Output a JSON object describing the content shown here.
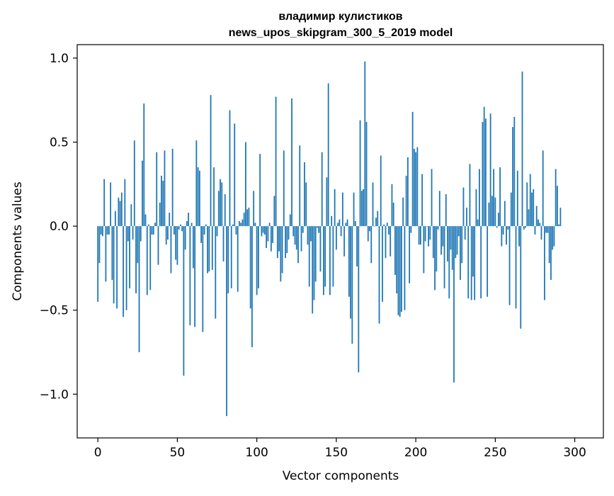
{
  "chart_data": {
    "type": "bar",
    "title": "владимир кулистиков",
    "subtitle": "news_upos_skipgram_300_5_2019 model",
    "xlabel": "Vector components",
    "ylabel": "Components values",
    "xlim": [
      -13,
      318
    ],
    "ylim": [
      -1.26,
      1.08
    ],
    "xticks": [
      0,
      50,
      100,
      150,
      200,
      250,
      300
    ],
    "xtick_labels": [
      "0",
      "50",
      "100",
      "150",
      "200",
      "250",
      "300"
    ],
    "yticks": [
      -1.0,
      -0.5,
      0.0,
      0.5,
      1.0
    ],
    "ytick_labels": [
      "−1.0",
      "−0.5",
      "0.0",
      "0.5",
      "1.0"
    ],
    "bar_color": "#1f77b4",
    "grid": false,
    "legend": "none",
    "values": [
      -0.45,
      -0.22,
      -0.05,
      -0.06,
      0.28,
      -0.33,
      -0.05,
      -0.05,
      0.26,
      -0.32,
      -0.46,
      0.09,
      -0.49,
      0.17,
      0.15,
      0.2,
      -0.54,
      0.28,
      -0.5,
      -0.09,
      -0.37,
      0.13,
      -0.08,
      0.51,
      -0.4,
      -0.22,
      -0.75,
      -0.09,
      0.39,
      0.73,
      0.07,
      -0.41,
      0.01,
      -0.38,
      -0.05,
      -0.05,
      0.02,
      0.44,
      -0.23,
      0.14,
      0.3,
      0.27,
      0.45,
      -0.11,
      -0.08,
      0.08,
      -0.28,
      0.46,
      -0.05,
      -0.2,
      -0.23,
      -0.02,
      0.01,
      -0.03,
      -0.89,
      -0.14,
      0.03,
      0.08,
      -0.59,
      0.02,
      -0.25,
      -0.6,
      0.51,
      0.35,
      0.33,
      -0.1,
      -0.63,
      -0.05,
      0.01,
      -0.28,
      -0.27,
      0.78,
      -0.26,
      0.35,
      -0.55,
      -0.06,
      0.21,
      0.28,
      0.26,
      -0.21,
      0.19,
      -1.13,
      -0.4,
      0.69,
      -0.37,
      0.01,
      0.61,
      -0.05,
      -0.39,
      0.03,
      0.02,
      0.04,
      0.08,
      0.5,
      0.1,
      0.11,
      -0.49,
      -0.72,
      0.21,
      0.02,
      -0.41,
      -0.37,
      0.43,
      -0.06,
      -0.04,
      -0.05,
      -0.13,
      -0.09,
      0.02,
      -0.15,
      -0.1,
      0.18,
      0.77,
      -0.19,
      -0.15,
      -0.33,
      -0.28,
      0.45,
      -0.19,
      -0.16,
      -0.08,
      0.07,
      0.76,
      -0.06,
      -0.11,
      -0.14,
      -0.22,
      0.48,
      -0.15,
      -0.04,
      0.38,
      0.26,
      -0.11,
      -0.36,
      -0.09,
      -0.52,
      -0.44,
      -0.33,
      -0.01,
      -0.04,
      -0.27,
      0.44,
      -0.41,
      -0.36,
      0.29,
      0.85,
      -0.41,
      0.06,
      -0.36,
      0.22,
      -0.14,
      0.02,
      0.04,
      -0.06,
      0.2,
      -0.18,
      0.02,
      0.04,
      -0.42,
      -0.55,
      -0.7,
      0.2,
      0.03,
      -0.24,
      -0.87,
      0.63,
      0.21,
      0.22,
      0.98,
      0.62,
      -0.09,
      -0.03,
      -0.22,
      0.26,
      0.0,
      0.05,
      0.09,
      -0.58,
      0.42,
      -0.45,
      0.01,
      -0.19,
      0.02,
      -0.05,
      -0.18,
      0.25,
      0.14,
      -0.29,
      -0.4,
      -0.53,
      -0.54,
      -0.51,
      0.17,
      -0.5,
      0.3,
      0.41,
      -0.34,
      -0.04,
      0.68,
      0.46,
      0.44,
      0.47,
      -0.11,
      -0.11,
      0.31,
      -0.28,
      -0.09,
      0.0,
      -0.12,
      -0.08,
      0.34,
      -0.19,
      -0.38,
      -0.27,
      -0.02,
      0.21,
      -0.17,
      -0.12,
      -0.37,
      0.19,
      -0.21,
      -0.43,
      -0.14,
      -0.26,
      -0.93,
      -0.19,
      -0.17,
      -0.06,
      -0.32,
      -0.22,
      0.23,
      -0.08,
      0.11,
      -0.43,
      0.37,
      -0.44,
      -0.3,
      -0.44,
      0.22,
      0.04,
      0.34,
      -0.43,
      0.62,
      0.71,
      0.64,
      -0.42,
      0.14,
      0.67,
      0.18,
      0.34,
      0.17,
      -0.01,
      0.08,
      0.35,
      -0.12,
      -0.05,
      0.15,
      -0.11,
      -0.02,
      -0.47,
      0.2,
      0.59,
      0.65,
      -0.49,
      0.33,
      -0.12,
      -0.61,
      0.92,
      -0.02,
      -0.01,
      0.26,
      0.1,
      0.31,
      0.2,
      0.22,
      -0.05,
      0.12,
      0.04,
      0.02,
      -0.08,
      0.45,
      -0.44,
      -0.04,
      -0.04,
      -0.22,
      -0.32,
      -0.14,
      -0.12,
      0.34,
      0.24,
      0.01,
      0.11
    ]
  }
}
